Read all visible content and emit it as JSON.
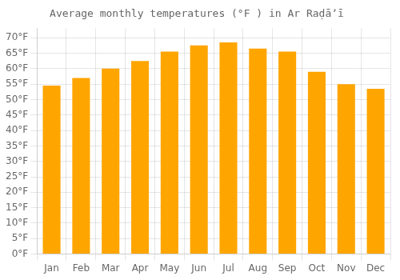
{
  "chart_data": {
    "type": "bar",
    "title": "Average monthly temperatures (°F ) in Ar Raḍāʼī",
    "categories": [
      "Jan",
      "Feb",
      "Mar",
      "Apr",
      "May",
      "Jun",
      "Jul",
      "Aug",
      "Sep",
      "Oct",
      "Nov",
      "Dec"
    ],
    "values": [
      54.5,
      57.0,
      60.0,
      62.5,
      65.5,
      67.5,
      68.5,
      66.5,
      65.5,
      59.0,
      55.0,
      53.5
    ],
    "color": "#FFA500",
    "ylim": [
      0,
      73
    ],
    "yticks": [
      {
        "value": 0,
        "label": "0°F"
      },
      {
        "value": 5,
        "label": "5°F"
      },
      {
        "value": 10,
        "label": "10°F"
      },
      {
        "value": 15,
        "label": "15°F"
      },
      {
        "value": 20,
        "label": "20°F"
      },
      {
        "value": 25,
        "label": "25°F"
      },
      {
        "value": 30,
        "label": "30°F"
      },
      {
        "value": 35,
        "label": "35°F"
      },
      {
        "value": 40,
        "label": "40°F"
      },
      {
        "value": 45,
        "label": "45°F"
      },
      {
        "value": 50,
        "label": "50°F"
      },
      {
        "value": 55,
        "label": "55°F"
      },
      {
        "value": 60,
        "label": "60°F"
      },
      {
        "value": 65,
        "label": "65°F"
      },
      {
        "value": 70,
        "label": "70°F"
      }
    ],
    "grid": true
  }
}
